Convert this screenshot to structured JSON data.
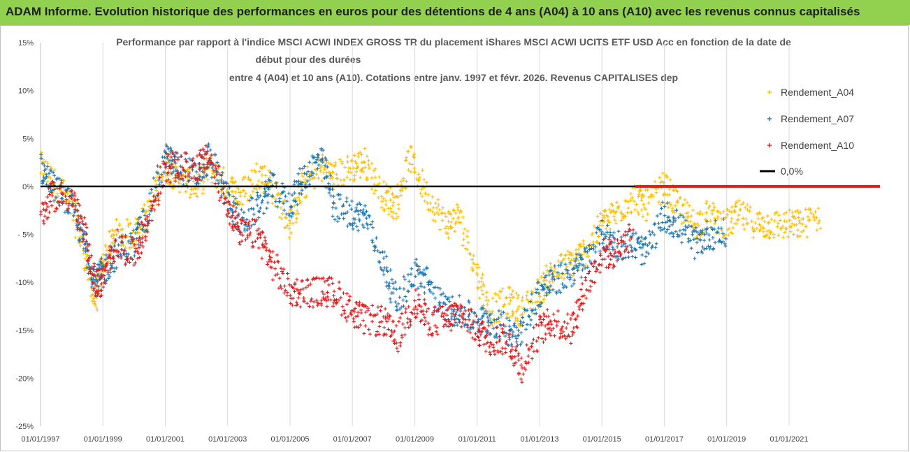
{
  "header": {
    "title": "ADAM Informe. Evolution historique des performances en euros pour des détentions de 4 ans (A04) à 10 ans (A10) avec les revenus connus capitalisés",
    "background": "#92d050"
  },
  "chart_data": {
    "type": "scatter",
    "title_lines": [
      "Performance par rapport à l'indice MSCI ACWI INDEX GROSS TR  du placement iShares MSCI ACWI UCITS ETF USD Acc en fonction de la date de",
      "début pour des durées",
      "entre 4 (A04) et 10 ans (A10).  Cotations entre janv. 1997 et févr. 2026. Revenus CAPITALISES dep"
    ],
    "xlabel": "",
    "ylabel": "",
    "x_range": [
      "1997-01-01",
      "2023-12-01"
    ],
    "ylim": [
      -25,
      15
    ],
    "y_ticks": [
      {
        "value": 15,
        "label": "15%"
      },
      {
        "value": 10,
        "label": "10%"
      },
      {
        "value": 5,
        "label": "5%"
      },
      {
        "value": 0,
        "label": "0%"
      },
      {
        "value": -5,
        "label": "- 5%"
      },
      {
        "value": -10,
        "label": "-10%"
      },
      {
        "value": -15,
        "label": "-15%"
      },
      {
        "value": -20,
        "label": "-20%"
      },
      {
        "value": -25,
        "label": "-25%"
      }
    ],
    "x_ticks": [
      {
        "value": "1997-01-01",
        "label": "01/01/1997"
      },
      {
        "value": "1999-01-01",
        "label": "01/01/1999"
      },
      {
        "value": "2001-01-01",
        "label": "01/01/2001"
      },
      {
        "value": "2003-01-01",
        "label": "01/01/2003"
      },
      {
        "value": "2005-01-01",
        "label": "01/01/2005"
      },
      {
        "value": "2007-01-01",
        "label": "01/01/2007"
      },
      {
        "value": "2009-01-01",
        "label": "01/01/2009"
      },
      {
        "value": "2011-01-01",
        "label": "01/01/2011"
      },
      {
        "value": "2013-01-01",
        "label": "01/01/2013"
      },
      {
        "value": "2015-01-01",
        "label": "01/01/2015"
      },
      {
        "value": "2017-01-01",
        "label": "01/01/2017"
      },
      {
        "value": "2019-01-01",
        "label": "01/01/2019"
      },
      {
        "value": "2021-01-01",
        "label": "01/01/2021"
      }
    ],
    "grid": {
      "vertical": true,
      "horizontal": false
    },
    "legend_position": "right",
    "series": [
      {
        "name": "Rendement_A04",
        "color": "#ffc000",
        "marker": "plus",
        "points": [
          [
            "1997-01-01",
            2
          ],
          [
            "1997-06-01",
            0.5
          ],
          [
            "1998-01-01",
            -2
          ],
          [
            "1998-06-01",
            -7
          ],
          [
            "1998-10-01",
            -12
          ],
          [
            "1999-01-01",
            -8
          ],
          [
            "1999-06-01",
            -5
          ],
          [
            "2000-01-01",
            -5
          ],
          [
            "2000-06-01",
            -3
          ],
          [
            "2001-01-01",
            2
          ],
          [
            "2001-06-01",
            1
          ],
          [
            "2002-01-01",
            0
          ],
          [
            "2002-06-01",
            2
          ],
          [
            "2003-01-01",
            0
          ],
          [
            "2003-06-01",
            -1
          ],
          [
            "2004-01-01",
            1.5
          ],
          [
            "2004-06-01",
            0
          ],
          [
            "2005-01-01",
            -4
          ],
          [
            "2005-06-01",
            0
          ],
          [
            "2006-01-01",
            2
          ],
          [
            "2006-06-01",
            1
          ],
          [
            "2007-01-01",
            2
          ],
          [
            "2007-06-01",
            2.5
          ],
          [
            "2008-01-01",
            -1
          ],
          [
            "2008-06-01",
            -2
          ],
          [
            "2008-11-01",
            3
          ],
          [
            "2009-06-01",
            -1
          ],
          [
            "2010-01-01",
            -4
          ],
          [
            "2010-06-01",
            -3
          ],
          [
            "2011-01-01",
            -9
          ],
          [
            "2011-06-01",
            -13
          ],
          [
            "2012-01-01",
            -12
          ],
          [
            "2012-06-01",
            -13
          ],
          [
            "2013-01-01",
            -11
          ],
          [
            "2013-06-01",
            -9
          ],
          [
            "2014-01-01",
            -8
          ],
          [
            "2014-06-01",
            -7
          ],
          [
            "2015-01-01",
            -4
          ],
          [
            "2015-06-01",
            -3
          ],
          [
            "2016-01-01",
            -1
          ],
          [
            "2016-06-01",
            -2
          ],
          [
            "2017-01-01",
            0
          ],
          [
            "2017-06-01",
            -2
          ],
          [
            "2018-01-01",
            -4
          ],
          [
            "2018-06-01",
            -3
          ],
          [
            "2019-01-01",
            -4
          ],
          [
            "2019-06-01",
            -3
          ],
          [
            "2020-01-01",
            -4
          ],
          [
            "2020-06-01",
            -4
          ],
          [
            "2021-01-01",
            -4
          ],
          [
            "2021-06-01",
            -4
          ],
          [
            "2022-01-01",
            -3
          ]
        ]
      },
      {
        "name": "Rendement_A07",
        "color": "#1f77b4",
        "marker": "plus",
        "points": [
          [
            "1997-01-01",
            2
          ],
          [
            "1997-06-01",
            0
          ],
          [
            "1998-01-01",
            -2
          ],
          [
            "1998-06-01",
            -6
          ],
          [
            "1998-10-01",
            -10
          ],
          [
            "1999-01-01",
            -9
          ],
          [
            "1999-06-01",
            -7
          ],
          [
            "2000-01-01",
            -6
          ],
          [
            "2000-06-01",
            -3
          ],
          [
            "2001-01-01",
            3
          ],
          [
            "2001-06-01",
            2
          ],
          [
            "2002-01-01",
            1
          ],
          [
            "2002-06-01",
            3
          ],
          [
            "2003-01-01",
            -1
          ],
          [
            "2003-06-01",
            -4
          ],
          [
            "2004-01-01",
            -2
          ],
          [
            "2004-06-01",
            0
          ],
          [
            "2005-01-01",
            -2
          ],
          [
            "2005-06-01",
            1
          ],
          [
            "2006-01-01",
            3
          ],
          [
            "2006-06-01",
            -2
          ],
          [
            "2007-01-01",
            -3
          ],
          [
            "2007-06-01",
            -3
          ],
          [
            "2008-01-01",
            -8
          ],
          [
            "2008-06-01",
            -12
          ],
          [
            "2009-01-01",
            -9
          ],
          [
            "2009-06-01",
            -10
          ],
          [
            "2010-01-01",
            -13
          ],
          [
            "2010-06-01",
            -13
          ],
          [
            "2011-01-01",
            -14
          ],
          [
            "2011-06-01",
            -14
          ],
          [
            "2012-01-01",
            -15
          ],
          [
            "2012-06-01",
            -15
          ],
          [
            "2013-01-01",
            -11
          ],
          [
            "2013-06-01",
            -10
          ],
          [
            "2014-01-01",
            -9
          ],
          [
            "2014-06-01",
            -8
          ],
          [
            "2015-01-01",
            -5
          ],
          [
            "2015-06-01",
            -6
          ],
          [
            "2016-01-01",
            -6
          ],
          [
            "2016-06-01",
            -7
          ],
          [
            "2017-01-01",
            -3
          ],
          [
            "2017-06-01",
            -4
          ],
          [
            "2018-01-01",
            -6
          ],
          [
            "2018-06-01",
            -5
          ],
          [
            "2019-01-01",
            -5
          ]
        ]
      },
      {
        "name": "Rendement_A10",
        "color": "#e31a1c",
        "marker": "plus",
        "points": [
          [
            "1997-01-01",
            -3
          ],
          [
            "1997-06-01",
            -1
          ],
          [
            "1998-01-01",
            -1
          ],
          [
            "1998-06-01",
            -5
          ],
          [
            "1998-10-01",
            -10
          ],
          [
            "1999-01-01",
            -10
          ],
          [
            "1999-06-01",
            -6
          ],
          [
            "2000-01-01",
            -7
          ],
          [
            "2000-06-01",
            -4
          ],
          [
            "2001-01-01",
            2
          ],
          [
            "2001-06-01",
            2
          ],
          [
            "2002-01-01",
            2
          ],
          [
            "2002-06-01",
            3
          ],
          [
            "2003-01-01",
            -2
          ],
          [
            "2003-06-01",
            -5
          ],
          [
            "2004-01-01",
            -5
          ],
          [
            "2004-06-01",
            -8
          ],
          [
            "2005-01-01",
            -11
          ],
          [
            "2005-06-01",
            -11
          ],
          [
            "2006-01-01",
            -11
          ],
          [
            "2006-06-01",
            -11
          ],
          [
            "2007-01-01",
            -13
          ],
          [
            "2007-06-01",
            -14
          ],
          [
            "2008-01-01",
            -14
          ],
          [
            "2008-06-01",
            -16
          ],
          [
            "2009-01-01",
            -12
          ],
          [
            "2009-06-01",
            -14
          ],
          [
            "2010-01-01",
            -14
          ],
          [
            "2010-06-01",
            -13
          ],
          [
            "2011-01-01",
            -15
          ],
          [
            "2011-06-01",
            -16
          ],
          [
            "2012-01-01",
            -16
          ],
          [
            "2012-06-01",
            -19
          ],
          [
            "2013-01-01",
            -15
          ],
          [
            "2013-06-01",
            -14
          ],
          [
            "2014-01-01",
            -15
          ],
          [
            "2014-06-01",
            -11
          ],
          [
            "2015-01-01",
            -7
          ],
          [
            "2015-06-01",
            -7
          ],
          [
            "2016-01-01",
            -5
          ]
        ]
      }
    ],
    "zero_line": {
      "name": "0,0%",
      "value": 0,
      "color": "#000000"
    },
    "zero_after_series": {
      "color": "#e31a1c",
      "from": "2016-02-01",
      "to": "2023-12-01",
      "value": 0
    }
  }
}
